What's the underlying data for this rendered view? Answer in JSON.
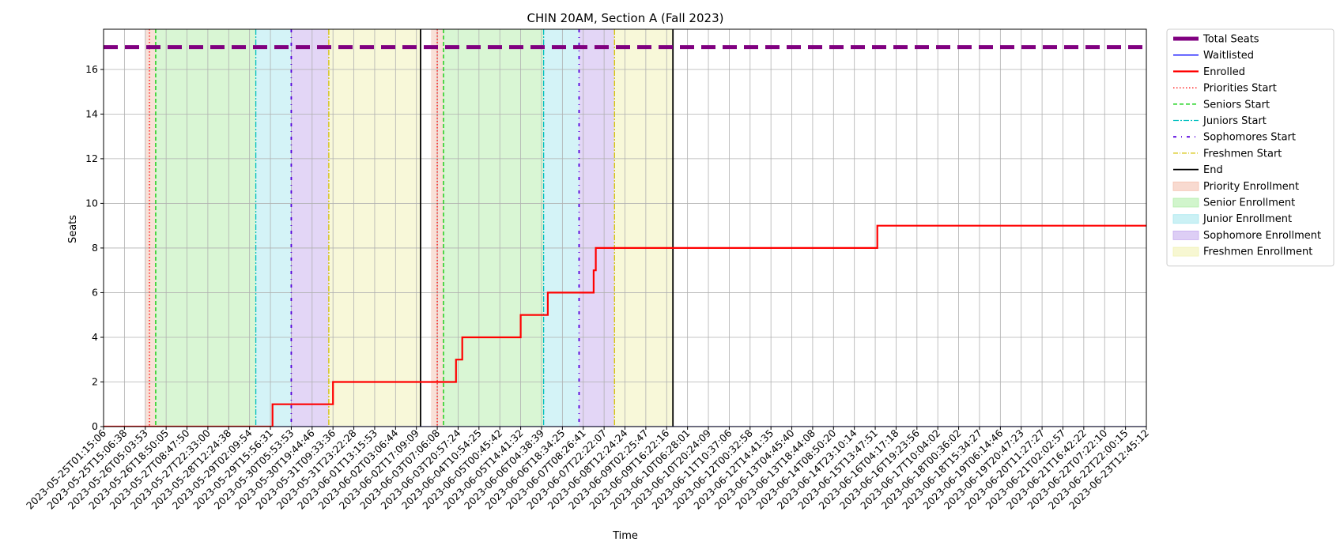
{
  "chart_data": {
    "type": "line",
    "title": "CHIN 20AM, Section A (Fall 2023)",
    "xlabel": "Time",
    "ylabel": "Seats",
    "ylim": [
      0,
      17.8
    ],
    "yticks": [
      0,
      2,
      4,
      6,
      8,
      10,
      12,
      14,
      16
    ],
    "grid": true,
    "legend_position": "outside-right",
    "x_tick_labels": [
      "2023-05-25T01:15:06",
      "2023-05-25T15:06:38",
      "2023-05-26T05:03:53",
      "2023-05-26T18:50:05",
      "2023-05-27T08:47:50",
      "2023-05-27T22:33:00",
      "2023-05-28T12:24:38",
      "2023-05-29T02:09:54",
      "2023-05-29T15:56:31",
      "2023-05-30T05:53:53",
      "2023-05-30T19:44:46",
      "2023-05-31T09:33:36",
      "2023-05-31T23:22:28",
      "2023-06-01T13:15:53",
      "2023-06-02T03:06:44",
      "2023-06-02T17:09:09",
      "2023-06-03T07:06:08",
      "2023-06-03T20:57:24",
      "2023-06-04T10:54:25",
      "2023-06-05T00:45:42",
      "2023-06-05T14:41:32",
      "2023-06-06T04:38:39",
      "2023-06-06T18:34:25",
      "2023-06-07T08:26:41",
      "2023-06-07T22:22:07",
      "2023-06-08T12:24:24",
      "2023-06-09T02:25:47",
      "2023-06-09T16:22:16",
      "2023-06-10T06:28:01",
      "2023-06-10T20:24:09",
      "2023-06-11T10:37:06",
      "2023-06-12T00:32:58",
      "2023-06-12T14:41:35",
      "2023-06-13T04:45:40",
      "2023-06-13T18:44:08",
      "2023-06-14T08:50:20",
      "2023-06-14T23:10:14",
      "2023-06-15T13:47:51",
      "2023-06-16T04:17:18",
      "2023-06-16T19:23:56",
      "2023-06-17T10:04:02",
      "2023-06-18T00:36:02",
      "2023-06-18T15:34:27",
      "2023-06-19T06:14:46",
      "2023-06-19T20:47:23",
      "2023-06-20T11:27:27",
      "2023-06-21T02:02:57",
      "2023-06-21T16:42:22",
      "2023-06-22T07:22:10",
      "2023-06-22T22:00:15",
      "2023-06-23T12:45:12"
    ],
    "x_index_max": 50.6,
    "series": [
      {
        "name": "Total Seats",
        "color": "#800080",
        "style": "dashed-thick",
        "points": [
          [
            0,
            17
          ],
          [
            50.6,
            17
          ]
        ]
      },
      {
        "name": "Waitlisted",
        "color": "#0000ff",
        "style": "solid",
        "points": [
          [
            0,
            0
          ],
          [
            50.6,
            0
          ]
        ]
      },
      {
        "name": "Enrolled",
        "color": "#ff0000",
        "style": "step",
        "points": [
          [
            0,
            0
          ],
          [
            8.1,
            0
          ],
          [
            8.1,
            1
          ],
          [
            11.0,
            1
          ],
          [
            11.0,
            2
          ],
          [
            16.9,
            2
          ],
          [
            16.9,
            3
          ],
          [
            17.2,
            3
          ],
          [
            17.2,
            4
          ],
          [
            20.0,
            4
          ],
          [
            20.0,
            5
          ],
          [
            21.3,
            5
          ],
          [
            21.3,
            6
          ],
          [
            23.5,
            6
          ],
          [
            23.5,
            7
          ],
          [
            23.6,
            7
          ],
          [
            23.6,
            8
          ],
          [
            37.1,
            8
          ],
          [
            37.1,
            9
          ],
          [
            50.6,
            9
          ]
        ]
      }
    ],
    "vertical_markers": [
      {
        "name": "Priorities Start",
        "color": "#ff0000",
        "style": "dotted",
        "x": [
          2.2,
          16.0
        ]
      },
      {
        "name": "Seniors Start",
        "color": "#00cc00",
        "style": "dashed",
        "x": [
          2.5,
          16.3
        ]
      },
      {
        "name": "Juniors Start",
        "color": "#00bfbf",
        "style": "dashdot",
        "x": [
          7.3,
          21.1
        ]
      },
      {
        "name": "Sophomores Start",
        "color": "#5500dd",
        "style": "dashdotted",
        "x": [
          9.0,
          22.8
        ]
      },
      {
        "name": "Freshmen Start",
        "color": "#d4c200",
        "style": "dashdot",
        "x": [
          10.8,
          24.5
        ]
      },
      {
        "name": "End",
        "color": "#000000",
        "style": "solid",
        "x": [
          15.2,
          27.3
        ]
      }
    ],
    "shaded_periods": [
      {
        "name": "Priority Enrollment",
        "color": "#f4c2b0",
        "ranges": [
          [
            2.0,
            2.5
          ],
          [
            15.7,
            16.3
          ]
        ]
      },
      {
        "name": "Senior Enrollment",
        "color": "#b3eeaa",
        "ranges": [
          [
            2.5,
            7.3
          ],
          [
            16.3,
            21.1
          ]
        ]
      },
      {
        "name": "Junior Enrollment",
        "color": "#a9e8ef",
        "ranges": [
          [
            7.3,
            9.0
          ],
          [
            21.1,
            22.8
          ]
        ]
      },
      {
        "name": "Sophomore Enrollment",
        "color": "#c7aeee",
        "ranges": [
          [
            9.0,
            10.8
          ],
          [
            22.8,
            24.5
          ]
        ]
      },
      {
        "name": "Freshmen Enrollment",
        "color": "#f1f2b4",
        "ranges": [
          [
            10.8,
            15.2
          ],
          [
            24.5,
            27.3
          ]
        ]
      }
    ],
    "legend": [
      {
        "label": "Total Seats",
        "kind": "line",
        "color": "#800080",
        "dash": "",
        "width": 5
      },
      {
        "label": "Waitlisted",
        "kind": "line",
        "color": "#0000ff",
        "dash": "",
        "width": 1.3
      },
      {
        "label": "Enrolled",
        "kind": "line",
        "color": "#ff0000",
        "dash": "",
        "width": 2.2
      },
      {
        "label": "Priorities Start",
        "kind": "line",
        "color": "#ff0000",
        "dash": "1.5,2.5",
        "width": 1.3
      },
      {
        "label": "Seniors Start",
        "kind": "line",
        "color": "#00cc00",
        "dash": "5,3",
        "width": 1.3
      },
      {
        "label": "Juniors Start",
        "kind": "line",
        "color": "#00bfbf",
        "dash": "7,2,2,2",
        "width": 1.3
      },
      {
        "label": "Sophomores Start",
        "kind": "line",
        "color": "#5500dd",
        "dash": "4,6,1,6",
        "width": 1.8
      },
      {
        "label": "Freshmen Start",
        "kind": "line",
        "color": "#d4c200",
        "dash": "6,2,1,2",
        "width": 1.3
      },
      {
        "label": "End",
        "kind": "line",
        "color": "#000000",
        "dash": "",
        "width": 1.8
      },
      {
        "label": "Priority Enrollment",
        "kind": "patch",
        "color": "#f4c2b0"
      },
      {
        "label": "Senior Enrollment",
        "kind": "patch",
        "color": "#b3eeaa"
      },
      {
        "label": "Junior Enrollment",
        "kind": "patch",
        "color": "#a9e8ef"
      },
      {
        "label": "Sophomore Enrollment",
        "kind": "patch",
        "color": "#c7aeee"
      },
      {
        "label": "Freshmen Enrollment",
        "kind": "patch",
        "color": "#f1f2b4"
      }
    ]
  }
}
